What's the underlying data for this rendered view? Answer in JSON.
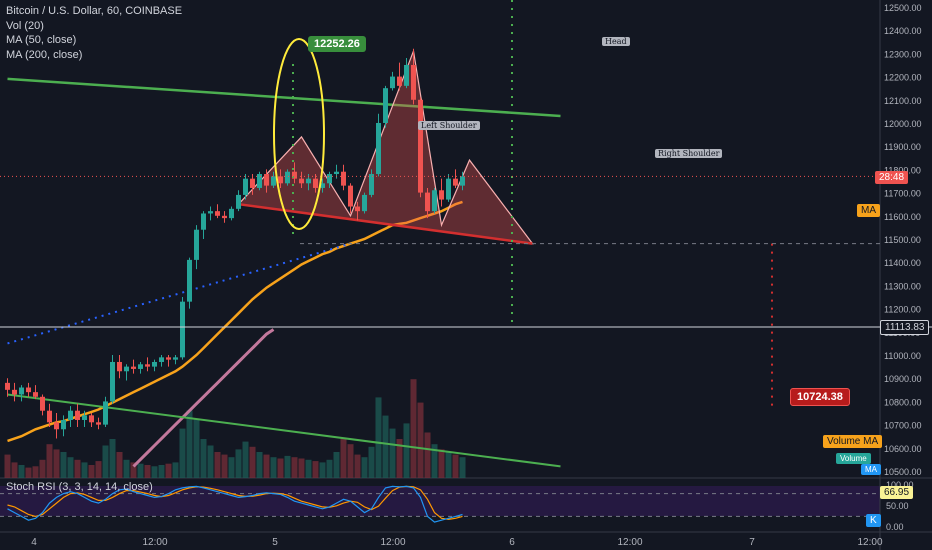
{
  "legend": {
    "symbol": "Bitcoin / U.S. Dollar, 60, COINBASE",
    "vol": "Vol (20)",
    "ma50": "MA (50, close)",
    "ma200": "MA (200, close)"
  },
  "rsi_legend": "Stoch RSI (3, 3, 14, 14, close)",
  "price_labels": {
    "current_time": "28:48",
    "ma": "MA",
    "crosshair": "11113.83",
    "volume_ma": "Volume MA",
    "volume": "Volume",
    "vol_ma_small": "MA",
    "rsi_value": "66.95",
    "rsi_k": "K"
  },
  "callouts": {
    "high": "12252.26",
    "target": "10724.38"
  },
  "pattern_labels": {
    "left": "Left Shoulder",
    "head": "Head",
    "right": "Right Shoulder"
  },
  "colors": {
    "up": "#26a69a",
    "down": "#ef5350",
    "ma50": "#f7a21b",
    "ma200": "#c2789c",
    "trend": "#4caf50",
    "neckline": "#d32f2f",
    "circle": "#ffeb3b"
  },
  "chart_data": {
    "type": "candlestick",
    "title": "Bitcoin / U.S. Dollar, 60, COINBASE",
    "y_axis": {
      "ticks": [
        12500,
        12400,
        12300,
        12200,
        12100,
        12000,
        11900,
        11800,
        11700,
        11600,
        11500,
        11400,
        11300,
        11200,
        11100,
        11000,
        10900,
        10800,
        10700,
        10600,
        10500
      ],
      "ylim": [
        10470,
        12530
      ]
    },
    "x_axis": {
      "ticks": [
        "4",
        "12:00",
        "5",
        "12:00",
        "6",
        "12:00",
        "7",
        "12:00"
      ]
    },
    "candles": [
      [
        10880,
        10900,
        10820,
        10850
      ],
      [
        10850,
        10880,
        10800,
        10830
      ],
      [
        10830,
        10870,
        10800,
        10860
      ],
      [
        10860,
        10880,
        10820,
        10840
      ],
      [
        10840,
        10870,
        10810,
        10820
      ],
      [
        10820,
        10830,
        10740,
        10760
      ],
      [
        10760,
        10790,
        10690,
        10710
      ],
      [
        10710,
        10750,
        10640,
        10680
      ],
      [
        10680,
        10740,
        10650,
        10720
      ],
      [
        10720,
        10780,
        10690,
        10760
      ],
      [
        10760,
        10790,
        10690,
        10720
      ],
      [
        10720,
        10760,
        10690,
        10740
      ],
      [
        10740,
        10750,
        10690,
        10710
      ],
      [
        10710,
        10730,
        10680,
        10700
      ],
      [
        10700,
        10820,
        10690,
        10800
      ],
      [
        10800,
        11000,
        10790,
        10970
      ],
      [
        10970,
        11000,
        10900,
        10930
      ],
      [
        10930,
        10960,
        10890,
        10950
      ],
      [
        10950,
        10980,
        10920,
        10940
      ],
      [
        10940,
        10970,
        10920,
        10960
      ],
      [
        10960,
        10990,
        10930,
        10950
      ],
      [
        10950,
        10980,
        10930,
        10970
      ],
      [
        10970,
        11000,
        10950,
        10990
      ],
      [
        10990,
        11000,
        10950,
        10980
      ],
      [
        10980,
        11000,
        10960,
        10990
      ],
      [
        10990,
        11250,
        10980,
        11230
      ],
      [
        11230,
        11420,
        11200,
        11410
      ],
      [
        11410,
        11560,
        11370,
        11540
      ],
      [
        11540,
        11620,
        11500,
        11610
      ],
      [
        11610,
        11640,
        11580,
        11620
      ],
      [
        11620,
        11650,
        11590,
        11600
      ],
      [
        11600,
        11620,
        11570,
        11590
      ],
      [
        11590,
        11640,
        11580,
        11630
      ],
      [
        11630,
        11710,
        11620,
        11690
      ],
      [
        11690,
        11780,
        11670,
        11760
      ],
      [
        11760,
        11780,
        11690,
        11720
      ],
      [
        11720,
        11790,
        11710,
        11780
      ],
      [
        11780,
        11800,
        11700,
        11730
      ],
      [
        11730,
        11790,
        11720,
        11770
      ],
      [
        11770,
        11800,
        11720,
        11740
      ],
      [
        11740,
        11800,
        11730,
        11790
      ],
      [
        11790,
        11830,
        11740,
        11760
      ],
      [
        11760,
        11790,
        11720,
        11740
      ],
      [
        11740,
        11780,
        11710,
        11760
      ],
      [
        11760,
        11780,
        11700,
        11720
      ],
      [
        11720,
        11760,
        11700,
        11740
      ],
      [
        11740,
        11790,
        11720,
        11780
      ],
      [
        11780,
        11820,
        11760,
        11790
      ],
      [
        11790,
        11820,
        11710,
        11730
      ],
      [
        11730,
        11740,
        11610,
        11640
      ],
      [
        11640,
        11660,
        11580,
        11620
      ],
      [
        11620,
        11700,
        11610,
        11690
      ],
      [
        11690,
        11800,
        11680,
        11780
      ],
      [
        11780,
        12040,
        11770,
        12000
      ],
      [
        12000,
        12160,
        11980,
        12150
      ],
      [
        12150,
        12220,
        12140,
        12200
      ],
      [
        12200,
        12260,
        12140,
        12160
      ],
      [
        12160,
        12280,
        12150,
        12250
      ],
      [
        12250,
        12320,
        12080,
        12100
      ],
      [
        12100,
        12110,
        11680,
        11700
      ],
      [
        11700,
        11720,
        11590,
        11620
      ],
      [
        11620,
        11720,
        11610,
        11710
      ],
      [
        11710,
        11760,
        11640,
        11670
      ],
      [
        11670,
        11780,
        11660,
        11760
      ],
      [
        11760,
        11800,
        11720,
        11730
      ],
      [
        11730,
        11790,
        11710,
        11770
      ]
    ],
    "volume_axis": {
      "ylim": [
        0,
        1000
      ]
    },
    "volume": [
      180,
      120,
      100,
      80,
      90,
      140,
      260,
      220,
      200,
      160,
      140,
      120,
      100,
      130,
      250,
      300,
      200,
      140,
      120,
      110,
      100,
      90,
      100,
      110,
      120,
      380,
      520,
      450,
      300,
      250,
      200,
      180,
      160,
      220,
      280,
      240,
      200,
      180,
      160,
      150,
      170,
      160,
      150,
      140,
      130,
      120,
      140,
      200,
      300,
      260,
      180,
      160,
      240,
      620,
      480,
      380,
      300,
      420,
      760,
      580,
      350,
      260,
      220,
      200,
      180,
      160
    ],
    "series": [
      {
        "name": "MA (50, close)",
        "values": [
          10630,
          10640,
          10650,
          10665,
          10680,
          10690,
          10700,
          10710,
          10715,
          10725,
          10735,
          10745,
          10755,
          10765,
          10780,
          10795,
          10810,
          10825,
          10840,
          10855,
          10870,
          10885,
          10900,
          10915,
          10930,
          10950,
          10975,
          11000,
          11030,
          11060,
          11090,
          11120,
          11150,
          11180,
          11210,
          11240,
          11265,
          11290,
          11310,
          11330,
          11350,
          11370,
          11390,
          11405,
          11420,
          11435,
          11445,
          11460,
          11470,
          11480,
          11490,
          11500,
          11515,
          11530,
          11545,
          11560,
          11565,
          11570,
          11580,
          11590,
          11600,
          11610,
          11620,
          11635,
          11650,
          11660
        ]
      },
      {
        "name": "MA (200, close)",
        "values": [
          null,
          null,
          null,
          null,
          null,
          null,
          null,
          null,
          null,
          null,
          null,
          null,
          null,
          null,
          null,
          null,
          null,
          null,
          10520,
          10550,
          10580,
          10610,
          10640,
          10670,
          10700,
          10730,
          10760,
          10790,
          10820,
          10850,
          10880,
          10910,
          10940,
          10970,
          11000,
          11030,
          11060,
          11090,
          11110,
          null,
          null,
          null,
          null,
          null,
          null,
          null,
          null,
          null,
          null,
          null,
          null,
          null,
          null,
          null,
          null,
          null,
          null,
          null,
          null,
          null,
          null,
          null,
          null,
          null,
          null,
          null
        ]
      }
    ],
    "stoch_rsi": {
      "ylim": [
        0,
        100
      ],
      "levels": [
        80,
        20
      ],
      "k": [
        40,
        30,
        20,
        10,
        15,
        30,
        55,
        70,
        80,
        85,
        80,
        70,
        60,
        55,
        65,
        80,
        90,
        92,
        85,
        80,
        75,
        70,
        72,
        80,
        90,
        95,
        98,
        99,
        95,
        90,
        85,
        80,
        75,
        70,
        72,
        75,
        80,
        82,
        80,
        78,
        70,
        60,
        55,
        50,
        45,
        40,
        45,
        55,
        65,
        60,
        45,
        30,
        40,
        70,
        95,
        99,
        98,
        99,
        95,
        70,
        20,
        5,
        10,
        15,
        20,
        25
      ],
      "d": [
        50,
        45,
        35,
        25,
        20,
        25,
        40,
        55,
        70,
        80,
        82,
        78,
        70,
        62,
        62,
        70,
        80,
        88,
        88,
        84,
        80,
        75,
        72,
        75,
        82,
        90,
        95,
        98,
        97,
        94,
        90,
        85,
        80,
        75,
        73,
        73,
        76,
        80,
        81,
        80,
        76,
        68,
        60,
        55,
        50,
        45,
        44,
        48,
        55,
        60,
        57,
        45,
        38,
        47,
        68,
        88,
        97,
        99,
        98,
        90,
        65,
        30,
        15,
        12,
        15,
        20
      ]
    },
    "annotations": {
      "resistance_line": [
        [
          0,
          12190
        ],
        [
          79,
          12030
        ]
      ],
      "support_line": [
        [
          0,
          10830
        ],
        [
          79,
          10520
        ]
      ],
      "neckline": [
        [
          33,
          11650
        ],
        [
          75,
          11480
        ]
      ],
      "head_and_shoulders": [
        [
          33,
          11650
        ],
        [
          42,
          11940
        ],
        [
          49,
          11600
        ],
        [
          58,
          12310
        ],
        [
          62,
          11560
        ],
        [
          66,
          11840
        ],
        [
          75,
          11480
        ]
      ],
      "dotted_projection_up": [
        [
          0,
          11050
        ],
        [
          49,
          11480
        ]
      ],
      "target": 10724.38,
      "pattern_high": 12252.26
    }
  }
}
